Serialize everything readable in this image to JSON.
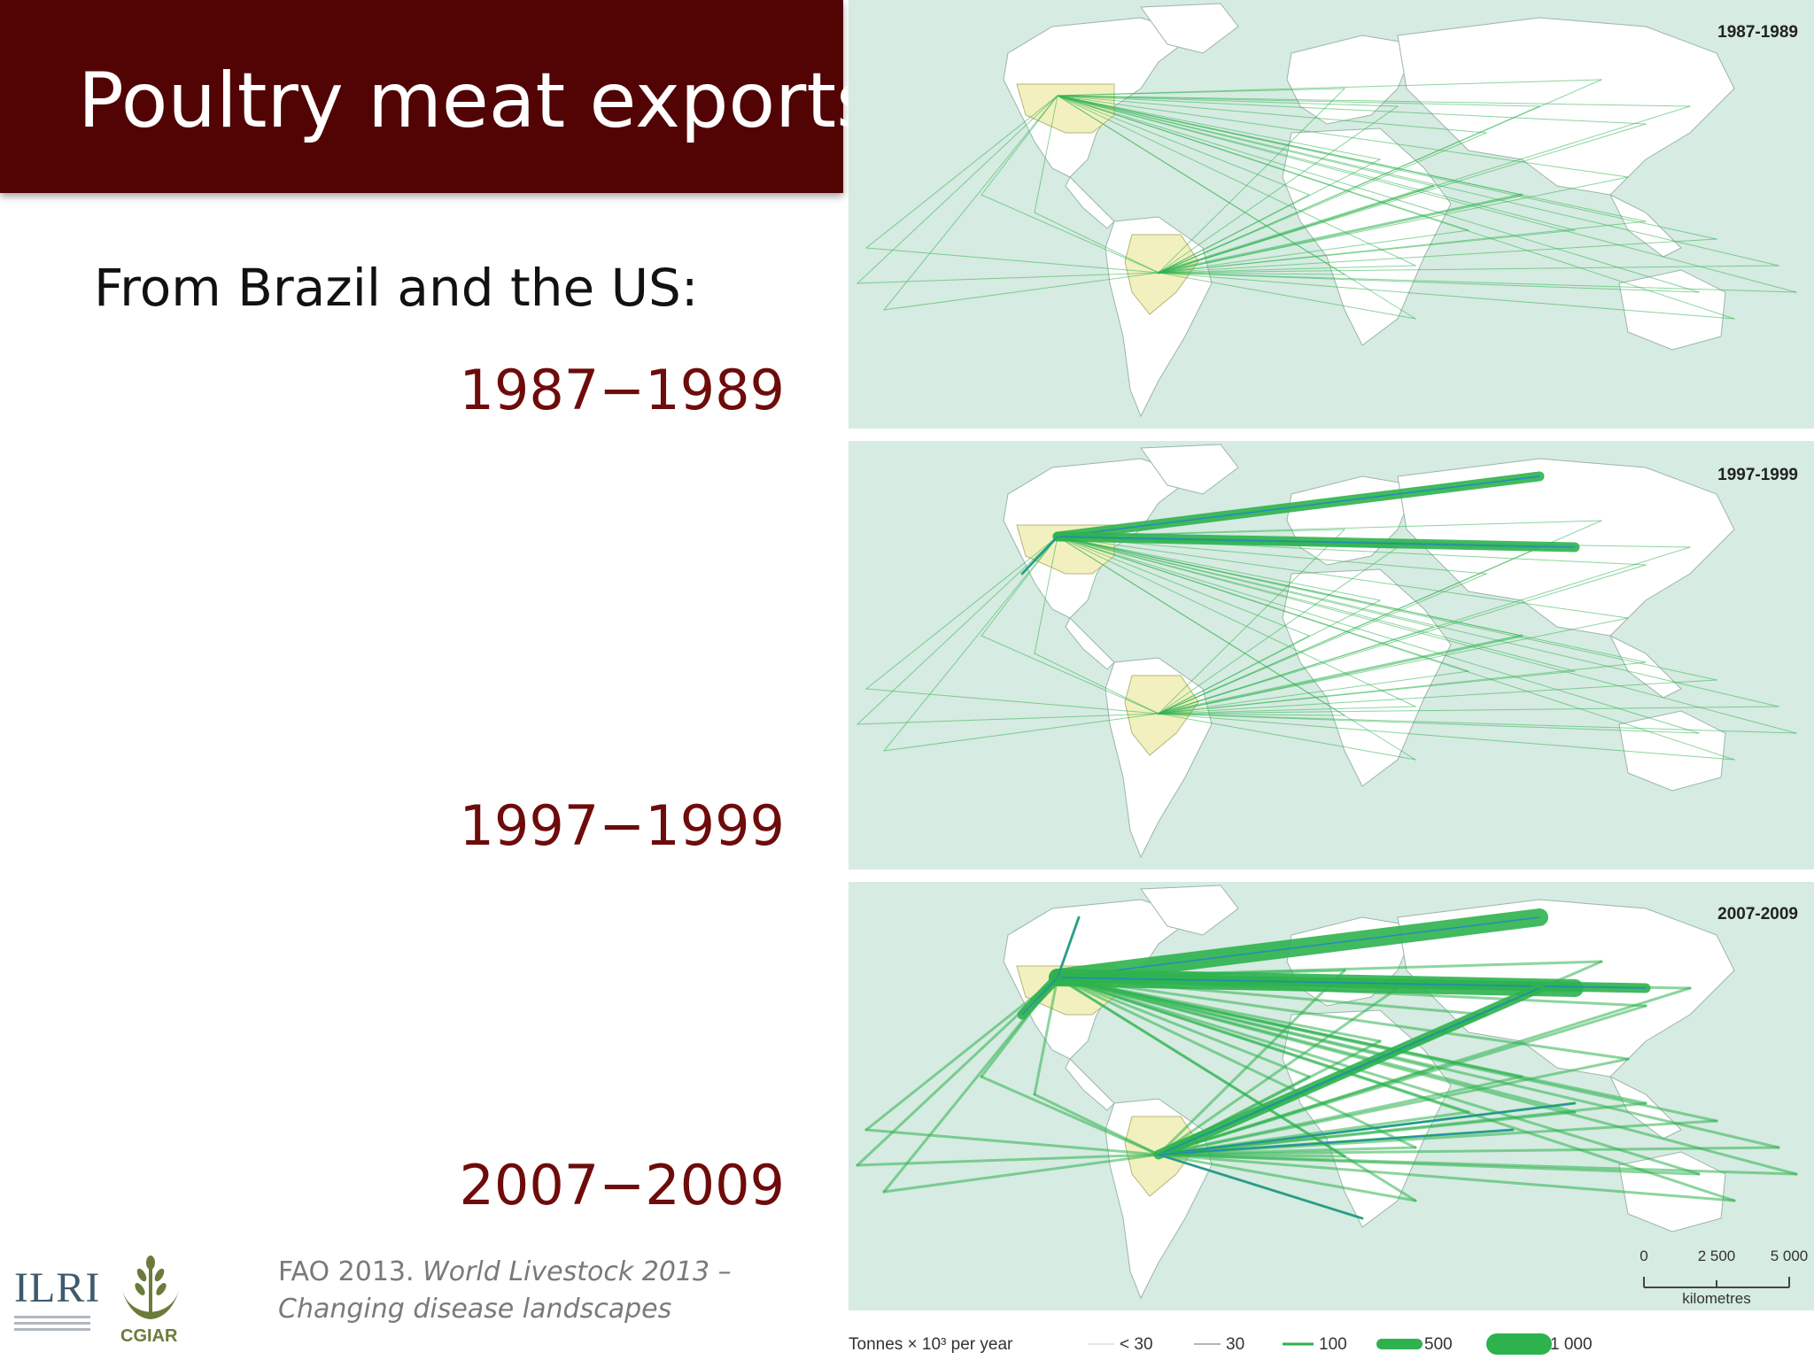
{
  "title": "Poultry meat exports",
  "subtitle": "From Brazil and the US:",
  "periods": [
    "1987−1989",
    "1997−1999",
    "2007−2009"
  ],
  "citation": {
    "prefix": "FAO 2013. ",
    "italic_line1": "World Livestock 2013 –",
    "italic_line2": "Changing disease landscapes"
  },
  "logos": {
    "ilri": "ILRI",
    "cgiar": "CGIAR"
  },
  "maps": [
    {
      "year_label": "1987-1989"
    },
    {
      "year_label": "1997-1999"
    },
    {
      "year_label": "2007-2009"
    }
  ],
  "scale_bar": {
    "ticks": [
      "0",
      "2 500",
      "5 000"
    ],
    "unit": "kilometres"
  },
  "legend": {
    "title": "Tonnes × 10³ per year",
    "items": [
      "< 30",
      "30",
      "100",
      "500",
      "1 000"
    ]
  },
  "colors": {
    "title_bar": "#520404",
    "period_text": "#6e0b0b",
    "ocean": "#d6ebe1",
    "land": "#ffffff",
    "exporter_land": "#f2f0bf",
    "flow_green": "#2db24e",
    "flow_blue": "#1f7fd0"
  }
}
